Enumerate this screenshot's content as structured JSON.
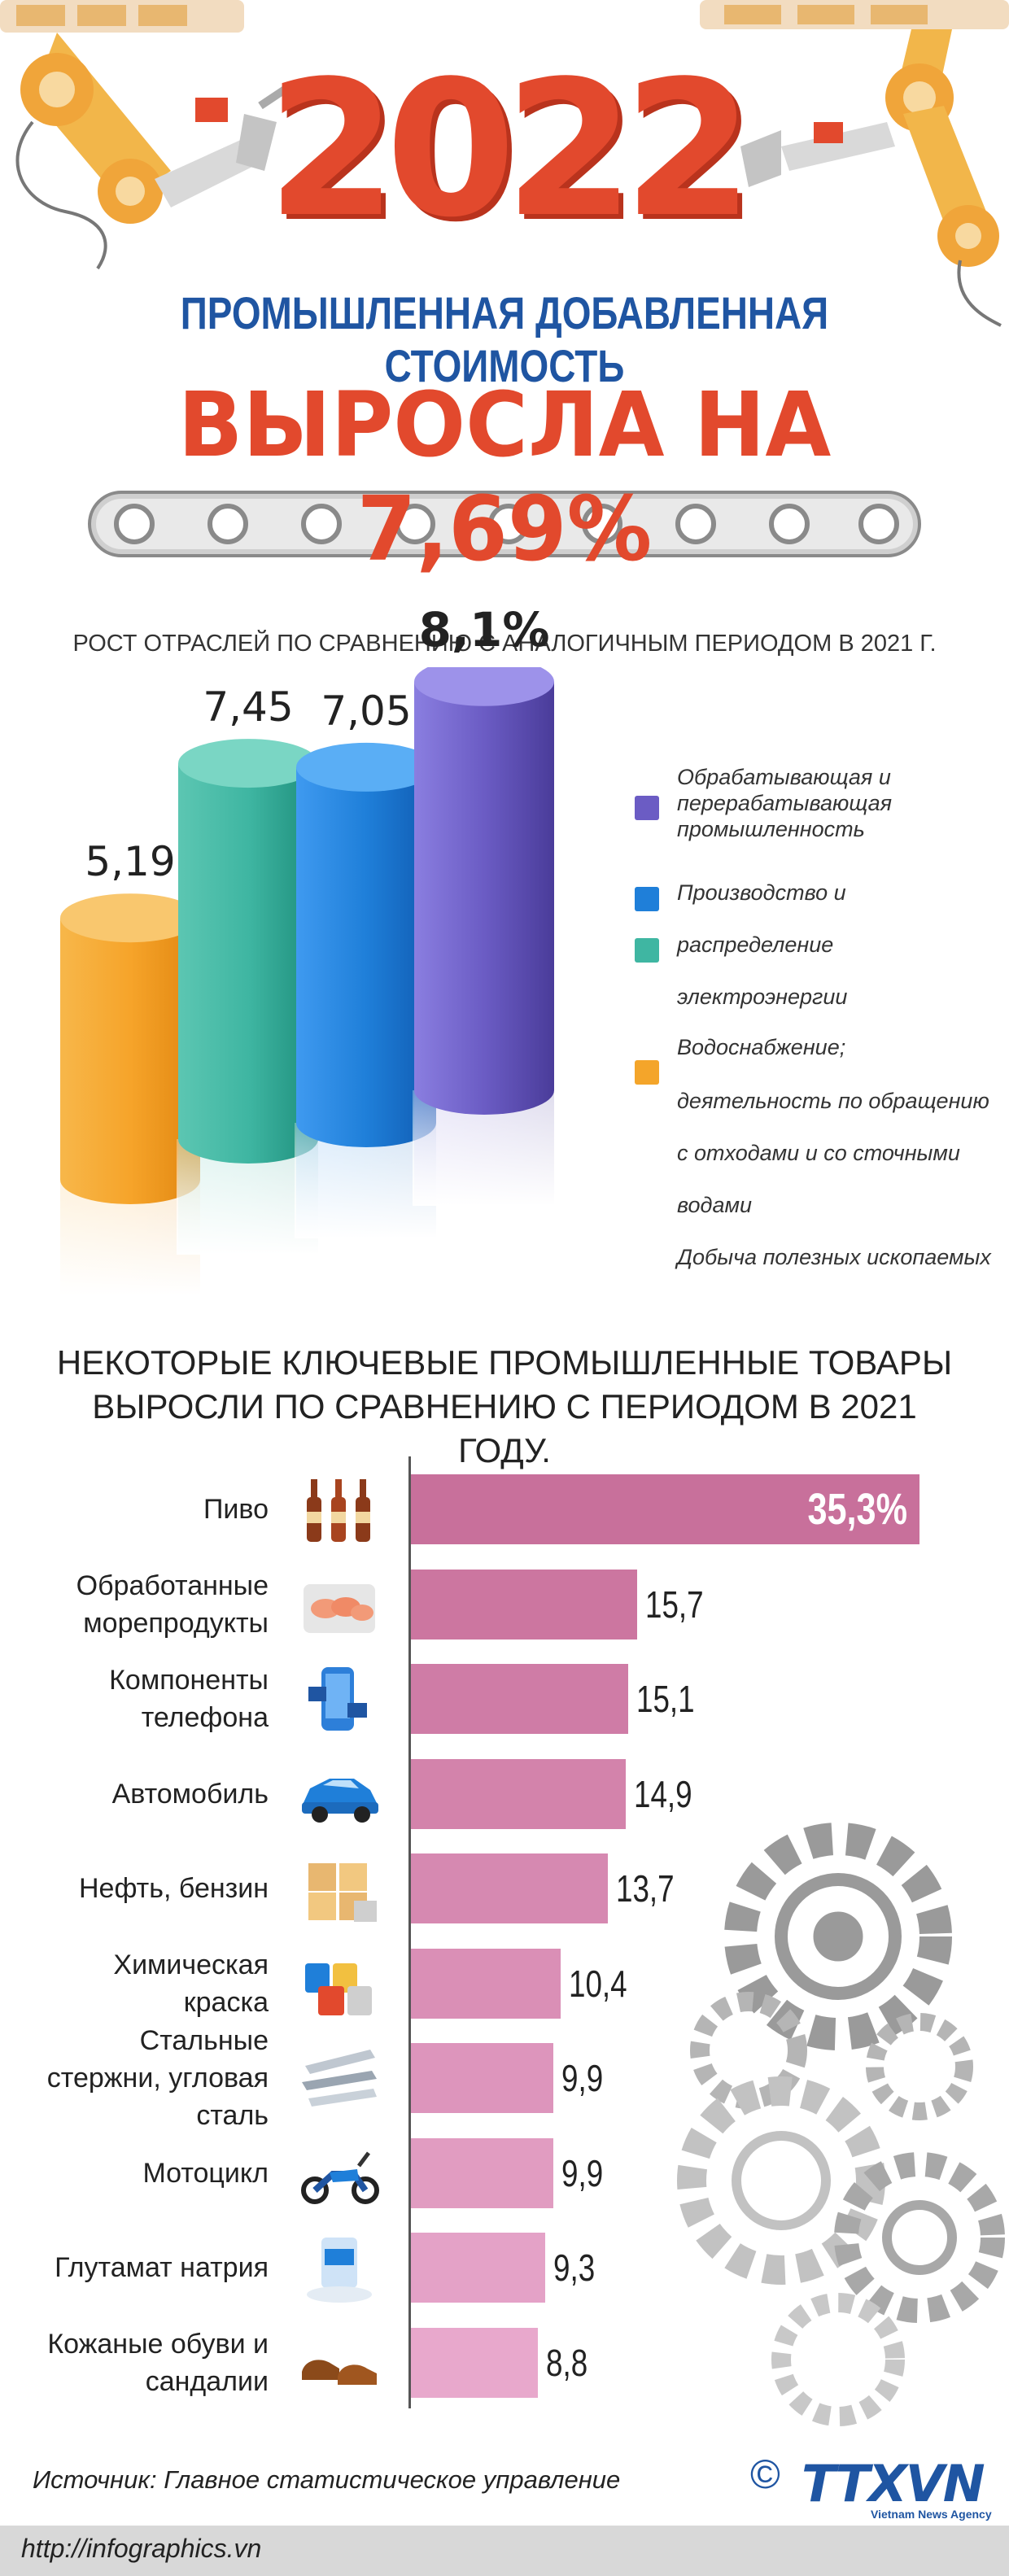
{
  "hero": {
    "year": "2022",
    "subtitle": "ПРОМЫШЛЕННАЯ ДОБАВЛЕННАЯ СТОИМОСТЬ",
    "headline": "ВЫРОСЛА НА 7,69%"
  },
  "colors": {
    "accent_red": "#e2492d",
    "accent_blue": "#1f55a2",
    "bar_pink_dark": "#c8709b",
    "bar_pink_light": "#e8a8cc"
  },
  "chart_data": [
    {
      "type": "bar",
      "title": "РОСТ ОТРАСЛЕЙ ПО СРАВНЕНИЮ С АНАЛОГИЧНЫМ ПЕРИОДОМ В 2021 Г.",
      "categories": [
        "Добыча полезных ископаемых",
        "Водоснабжение; деятельность по обращению с отходами и со сточными водами",
        "Производство и распределение электроэнергии",
        "Обрабатывающая и перерабатывающая промышленность"
      ],
      "values": [
        5.19,
        7.45,
        7.05,
        8.1
      ],
      "value_labels": [
        "5,19",
        "7,45",
        "7,05",
        "8,1%"
      ],
      "colors": [
        "#f4a52a",
        "#3fb6a2",
        "#1f7fd9",
        "#6b5cc4"
      ],
      "ylim": [
        0,
        9
      ],
      "legend": {
        "placement": "right",
        "lines": [
          "Обрабатывающая и",
          "перерабатывающая",
          "промышленность",
          "Производство и",
          "распределение",
          "электроэнергии",
          "Водоснабжение;",
          "деятельность по обращению",
          "с отходами и со сточными",
          "водами",
          "Добыча полезных ископаемых"
        ]
      }
    },
    {
      "type": "bar",
      "orientation": "horizontal",
      "title": "НЕКОТОРЫЕ КЛЮЧЕВЫЕ ПРОМЫШЛЕННЫЕ ТОВАРЫ ВЫРОСЛИ ПО СРАВНЕНИЮ С ПЕРИОДОМ В 2021 ГОДУ.",
      "categories": [
        "Пиво",
        "Обработанные морепродукты",
        "Компоненты телефона",
        "Автомобиль",
        "Нефть, бензин",
        "Химическая краска",
        "Стальные стержни, угловая сталь",
        "Мотоцикл",
        "Глутамат натрия",
        "Кожаные обуви и сандалии"
      ],
      "label_lines": [
        [
          "Пиво"
        ],
        [
          "Обработанные",
          "морепродукты"
        ],
        [
          "Компоненты",
          "телефона"
        ],
        [
          "Автомобиль"
        ],
        [
          "Нефть, бензин"
        ],
        [
          "Химическая",
          "краска"
        ],
        [
          "Стальные",
          "стержни, угловая",
          "сталь"
        ],
        [
          "Мотоцикл"
        ],
        [
          "Глутамат натрия"
        ],
        [
          "Кожаные обуви и",
          "сандалии"
        ]
      ],
      "values": [
        35.3,
        15.7,
        15.1,
        14.9,
        13.7,
        10.4,
        9.9,
        9.9,
        9.3,
        8.8
      ],
      "value_labels": [
        "35,3%",
        "15,7",
        "15,1",
        "14,9",
        "13,7",
        "10,4",
        "9,9",
        "9,9",
        "9,3",
        "8,8"
      ],
      "icons": [
        "beer-bottles-icon",
        "seafood-icon",
        "phone-components-icon",
        "car-icon",
        "oil-barrels-icon",
        "paint-cans-icon",
        "steel-bars-icon",
        "motorcycle-icon",
        "msg-icon",
        "shoes-icon"
      ]
    }
  ],
  "footer": {
    "source": "Источник: Главное статистическое управление",
    "url": "http://infographics.vn",
    "copyright": "©",
    "logo": "TTXVN",
    "logo_sub": "Vietnam News Agency"
  }
}
